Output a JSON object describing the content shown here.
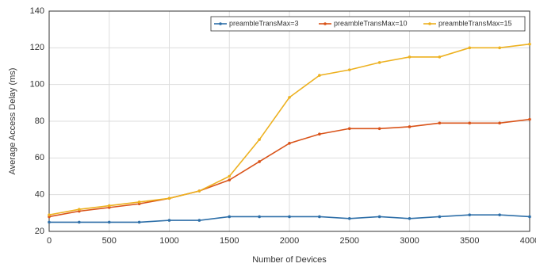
{
  "chart_data": {
    "type": "line",
    "xlabel": "Number of Devices",
    "ylabel": "Average Access Delay (ms)",
    "x": [
      0,
      250,
      500,
      750,
      1000,
      1250,
      1500,
      1750,
      2000,
      2250,
      2500,
      2750,
      3000,
      3250,
      3500,
      3750,
      4000
    ],
    "series": [
      {
        "name": "preambleTransMax=3",
        "color": "#2e6fa8",
        "values": [
          25,
          25,
          25,
          25,
          26,
          26,
          28,
          28,
          28,
          28,
          27,
          28,
          27,
          28,
          29,
          29,
          28
        ]
      },
      {
        "name": "preambleTransMax=10",
        "color": "#d95319",
        "values": [
          28,
          31,
          33,
          35,
          38,
          42,
          48,
          58,
          68,
          73,
          76,
          76,
          77,
          79,
          79,
          79,
          81
        ]
      },
      {
        "name": "preambleTransMax=15",
        "color": "#edb120",
        "values": [
          29,
          32,
          34,
          36,
          38,
          42,
          50,
          70,
          93,
          105,
          108,
          112,
          115,
          115,
          120,
          120,
          122
        ]
      }
    ],
    "xlim": [
      0,
      4000
    ],
    "xticks": [
      0,
      500,
      1000,
      1500,
      2000,
      2500,
      3000,
      3500,
      4000
    ],
    "ylim": [
      20,
      140
    ],
    "yticks": [
      20,
      40,
      60,
      80,
      100,
      120,
      140
    ],
    "grid": true,
    "legend": "top-right"
  }
}
